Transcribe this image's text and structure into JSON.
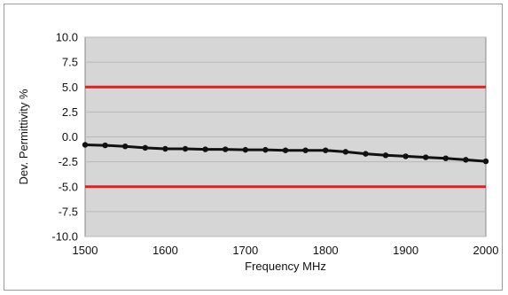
{
  "chart_data": {
    "type": "line",
    "xlabel": "Frequency MHz",
    "ylabel": "Dev. Permittivity %",
    "xlim": [
      1500,
      2000
    ],
    "ylim": [
      -10,
      10
    ],
    "x_ticks": [
      1500,
      1600,
      1700,
      1800,
      1900,
      2000
    ],
    "y_ticks": [
      10,
      7.5,
      5,
      2.5,
      0,
      -2.5,
      -5,
      -7.5,
      -10
    ],
    "y_tick_labels": [
      "10.0",
      "7.5",
      "5.0",
      "2.5",
      "0.0",
      "-2.5",
      "-5.0",
      "-7.5",
      "-10.0"
    ],
    "grid": "horizontal",
    "colors": {
      "plot_background": "#d6d6d6",
      "limit_lines": "#e02020",
      "series": "#111111"
    },
    "limits": [
      5,
      -5
    ],
    "series": [
      {
        "x": [
          1500,
          1525,
          1550,
          1575,
          1600,
          1625,
          1650,
          1675,
          1700,
          1725,
          1750,
          1775,
          1800,
          1825,
          1850,
          1875,
          1900,
          1925,
          1950,
          1975,
          2000
        ],
        "values": [
          -0.8,
          -0.85,
          -0.95,
          -1.1,
          -1.2,
          -1.2,
          -1.25,
          -1.25,
          -1.3,
          -1.3,
          -1.35,
          -1.35,
          -1.35,
          -1.5,
          -1.7,
          -1.85,
          -1.95,
          -2.05,
          -2.15,
          -2.3,
          -2.45
        ]
      }
    ]
  }
}
